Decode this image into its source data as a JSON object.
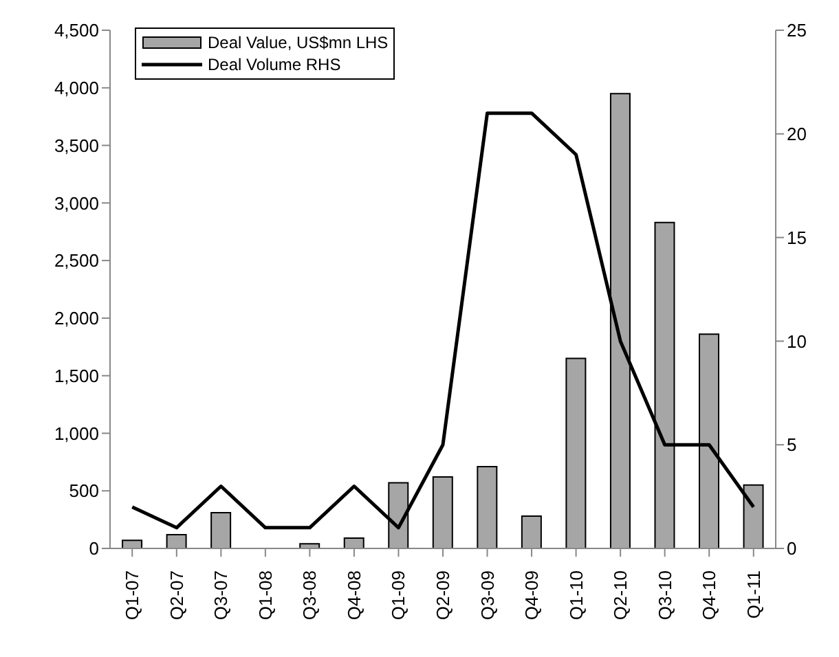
{
  "chart_data": {
    "type": "bar",
    "categories": [
      "Q1-07",
      "Q2-07",
      "Q3-07",
      "Q1-08",
      "Q3-08",
      "Q4-08",
      "Q1-09",
      "Q2-09",
      "Q3-09",
      "Q4-09",
      "Q1-10",
      "Q2-10",
      "Q3-10",
      "Q4-10",
      "Q1-11"
    ],
    "series": [
      {
        "name": "Deal Value, US$mn LHS",
        "color": "#a6a6a6",
        "values": [
          70,
          120,
          310,
          0,
          40,
          90,
          570,
          620,
          710,
          280,
          1650,
          3950,
          2830,
          1860,
          550
        ]
      },
      {
        "name": "Deal Volume RHS",
        "type": "line",
        "axis": "y2",
        "color": "#000000",
        "values": [
          2,
          1,
          3,
          1,
          1,
          3,
          1,
          5,
          21,
          21,
          19,
          10,
          5,
          5,
          2
        ]
      }
    ],
    "ylim": [
      0,
      4500
    ],
    "yticks": [
      {
        "value": 0,
        "label": "0"
      },
      {
        "value": 500,
        "label": "500"
      },
      {
        "value": 1000,
        "label": "1,000"
      },
      {
        "value": 1500,
        "label": "1,500"
      },
      {
        "value": 2000,
        "label": "2,000"
      },
      {
        "value": 2500,
        "label": "2,500"
      },
      {
        "value": 3000,
        "label": "3,000"
      },
      {
        "value": 3500,
        "label": "3,500"
      },
      {
        "value": 4000,
        "label": "4,000"
      },
      {
        "value": 4500,
        "label": "4,500"
      }
    ],
    "y2lim": [
      0,
      25
    ],
    "y2ticks": [
      0,
      5,
      10,
      15,
      20,
      25
    ],
    "legend": "top left",
    "grid": false,
    "marker": "none"
  }
}
